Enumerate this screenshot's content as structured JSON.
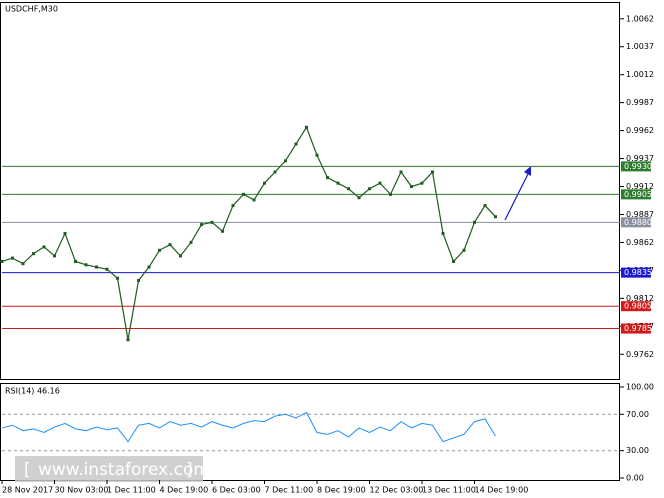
{
  "chart_data": {
    "type": "line",
    "title": "USDCHF,M30",
    "categories": [
      "28 Nov 2017",
      null,
      null,
      null,
      null,
      "30 Nov 03:00",
      null,
      null,
      null,
      null,
      "1 Dec 11:00",
      null,
      null,
      null,
      null,
      "4 Dec 19:00",
      null,
      null,
      null,
      null,
      "6 Dec 03:00",
      null,
      null,
      null,
      null,
      "7 Dec 11:00",
      null,
      null,
      null,
      null,
      "8 Dec 19:00",
      null,
      null,
      null,
      null,
      "12 Dec 03:00",
      null,
      null,
      null,
      null,
      "13 Dec 11:00",
      null,
      null,
      null,
      null,
      "14 Dec 19:00",
      null,
      null
    ],
    "series": [
      {
        "color": "#1e5d1e",
        "values": [
          0.9845,
          0.9848,
          0.9843,
          0.9852,
          0.9858,
          0.985,
          0.987,
          0.9845,
          0.9842,
          0.984,
          0.9838,
          0.983,
          0.9775,
          0.9828,
          0.984,
          0.9855,
          0.986,
          0.985,
          0.9862,
          0.9878,
          0.988,
          0.9872,
          0.9895,
          0.9905,
          0.99,
          0.9915,
          0.9925,
          0.9935,
          0.995,
          0.9965,
          0.994,
          0.992,
          0.9915,
          0.991,
          0.9902,
          0.991,
          0.9915,
          0.9905,
          0.9925,
          0.9912,
          0.9915,
          0.9925,
          0.987,
          0.9845,
          0.9855,
          0.988,
          0.9895,
          0.9885
        ]
      }
    ],
    "ylim": [
      0.9739,
      1.0077
    ],
    "yticks": [
      1.0062,
      1.0037,
      1.0012,
      0.9987,
      0.9962,
      0.9937,
      0.9912,
      0.9887,
      0.9862,
      0.9837,
      0.9812,
      0.9787,
      0.9762
    ],
    "levels": [
      {
        "value": 0.993,
        "label": "0.9930",
        "color": "#2e7d2e"
      },
      {
        "value": 0.9905,
        "label": "0.9905",
        "color": "#2e7d2e"
      },
      {
        "value": 0.988,
        "label": "0.9880",
        "color": "#8a8fa0"
      },
      {
        "value": 0.9835,
        "label": "0.9835",
        "color": "#1a1ad0"
      },
      {
        "value": 0.9805,
        "label": "0.9805",
        "color": "#d01a1a"
      },
      {
        "value": 0.9785,
        "label": "0.9785",
        "color": "#d01a1a"
      }
    ],
    "rsi": {
      "title": "RSI(14) 46.16",
      "color": "#1e90ff",
      "values": [
        55,
        58,
        52,
        54,
        50,
        56,
        60,
        54,
        52,
        56,
        53,
        55,
        40,
        58,
        60,
        55,
        62,
        58,
        60,
        56,
        62,
        58,
        55,
        60,
        63,
        62,
        68,
        70,
        66,
        72,
        50,
        48,
        52,
        45,
        55,
        50,
        56,
        52,
        62,
        55,
        60,
        58,
        40,
        44,
        48,
        62,
        65,
        46
      ],
      "ylim": [
        0,
        100
      ],
      "yticks": [
        {
          "value": 100,
          "label": "100.00"
        },
        {
          "value": 70,
          "label": "70.00"
        },
        {
          "value": 30,
          "label": "30.00"
        },
        {
          "value": 0,
          "label": "0.00"
        }
      ]
    },
    "watermark": "www.instaforex.com"
  }
}
